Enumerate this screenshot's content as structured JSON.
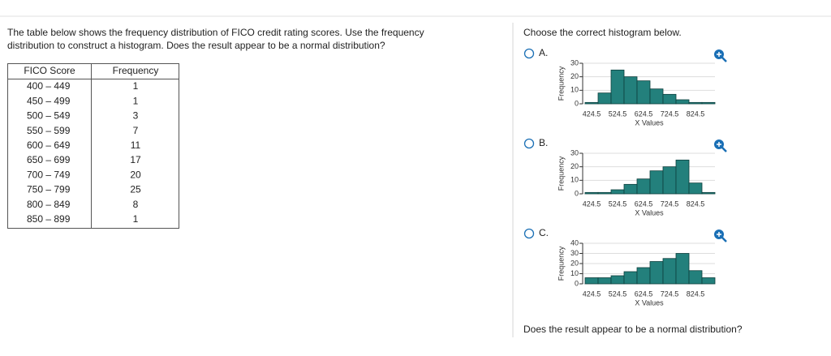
{
  "question": {
    "line1": "The table below shows the frequency distribution of FICO credit rating scores. Use the frequency",
    "line2": "distribution to construct a histogram. Does the result appear to be a normal distribution?"
  },
  "table": {
    "header": [
      "FICO Score",
      "Frequency"
    ],
    "rows": [
      [
        "400 – 449",
        "1"
      ],
      [
        "450 – 499",
        "1"
      ],
      [
        "500 – 549",
        "3"
      ],
      [
        "550 – 599",
        "7"
      ],
      [
        "600 – 649",
        "11"
      ],
      [
        "650 – 699",
        "17"
      ],
      [
        "700 – 749",
        "20"
      ],
      [
        "750 – 799",
        "25"
      ],
      [
        "800 – 849",
        "8"
      ],
      [
        "850 – 899",
        "1"
      ]
    ]
  },
  "choice_prompt": "Choose the correct histogram below.",
  "options": [
    "A.",
    "B.",
    "C."
  ],
  "followup": "Does the result appear to be a normal distribution?",
  "chart_data": [
    {
      "type": "histogram",
      "y_label": "Frequency",
      "x_label": "X Values",
      "color": "#23807c",
      "grid": true,
      "bins": [
        399.5,
        449.5,
        499.5,
        549.5,
        599.5,
        649.5,
        699.5,
        749.5,
        799.5,
        849.5,
        899.5
      ],
      "values": [
        1,
        8,
        25,
        20,
        17,
        11,
        7,
        3,
        1,
        1
      ],
      "xlim": [
        399.5,
        899.5
      ],
      "xticks": [
        424.5,
        524.5,
        624.5,
        724.5,
        824.5
      ],
      "ylim": [
        0,
        30
      ],
      "yticks": [
        0,
        10,
        20,
        30
      ]
    },
    {
      "type": "histogram",
      "y_label": "Frequency",
      "x_label": "X Values",
      "color": "#23807c",
      "grid": true,
      "bins": [
        399.5,
        449.5,
        499.5,
        549.5,
        599.5,
        649.5,
        699.5,
        749.5,
        799.5,
        849.5,
        899.5
      ],
      "values": [
        1,
        1,
        3,
        7,
        11,
        17,
        20,
        25,
        8,
        1
      ],
      "xlim": [
        399.5,
        899.5
      ],
      "xticks": [
        424.5,
        524.5,
        624.5,
        724.5,
        824.5
      ],
      "ylim": [
        0,
        30
      ],
      "yticks": [
        0,
        10,
        20,
        30
      ]
    },
    {
      "type": "histogram",
      "y_label": "Frequency",
      "x_label": "X Values",
      "color": "#23807c",
      "grid": true,
      "bins": [
        399.5,
        449.5,
        499.5,
        549.5,
        599.5,
        649.5,
        699.5,
        749.5,
        799.5,
        849.5,
        899.5
      ],
      "values": [
        6,
        6,
        8,
        12,
        16,
        22,
        25,
        30,
        13,
        6
      ],
      "xlim": [
        399.5,
        899.5
      ],
      "xticks": [
        424.5,
        524.5,
        624.5,
        724.5,
        824.5
      ],
      "ylim": [
        0,
        40
      ],
      "yticks": [
        0,
        10,
        20,
        30,
        40
      ]
    }
  ]
}
